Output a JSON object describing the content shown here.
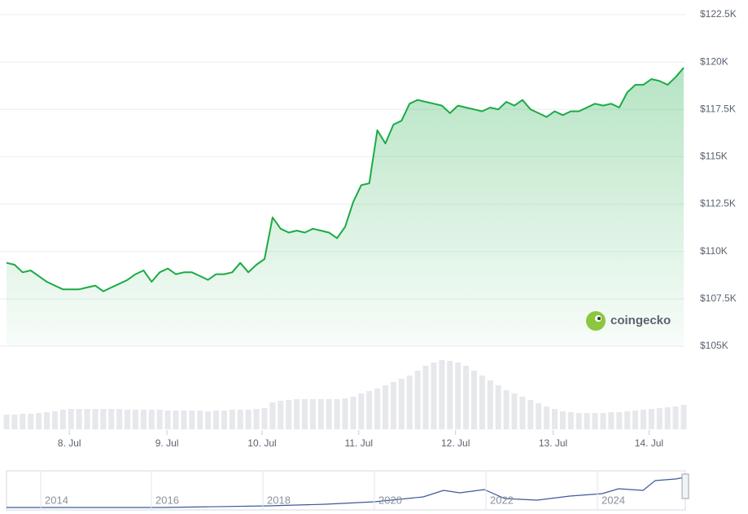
{
  "chart_data": {
    "type": "area",
    "series": [
      {
        "name": "Price",
        "color": "#1aab45",
        "values": [
          109.4,
          109.3,
          108.9,
          109.0,
          108.7,
          108.4,
          108.2,
          108.0,
          108.0,
          108.0,
          108.1,
          108.2,
          107.9,
          108.1,
          108.3,
          108.5,
          108.8,
          109.0,
          108.4,
          108.9,
          109.1,
          108.8,
          108.9,
          108.9,
          108.7,
          108.5,
          108.8,
          108.8,
          108.9,
          109.4,
          108.9,
          109.3,
          109.6,
          111.8,
          111.2,
          111.0,
          111.1,
          111.0,
          111.2,
          111.1,
          111.0,
          110.7,
          111.3,
          112.6,
          113.5,
          113.6,
          116.4,
          115.7,
          116.7,
          116.9,
          117.8,
          118.0,
          117.9,
          117.8,
          117.7,
          117.3,
          117.7,
          117.6,
          117.5,
          117.4,
          117.6,
          117.5,
          117.9,
          117.7,
          118.0,
          117.5,
          117.3,
          117.1,
          117.4,
          117.2,
          117.4,
          117.4,
          117.6,
          117.8,
          117.7,
          117.8,
          117.6,
          118.4,
          118.8,
          118.8,
          119.1,
          119.0,
          118.8,
          119.2,
          119.7
        ]
      }
    ],
    "volume": {
      "color": "#e6e8ec",
      "values": [
        18,
        18,
        19,
        19,
        20,
        21,
        22,
        24,
        25,
        25,
        25,
        25,
        25,
        25,
        25,
        24,
        24,
        24,
        24,
        24,
        23,
        23,
        23,
        23,
        23,
        22,
        23,
        23,
        24,
        24,
        24,
        25,
        26,
        33,
        35,
        36,
        37,
        37,
        37,
        37,
        37,
        37,
        38,
        40,
        44,
        47,
        50,
        54,
        58,
        62,
        66,
        72,
        78,
        82,
        85,
        84,
        82,
        78,
        72,
        66,
        60,
        54,
        48,
        44,
        40,
        36,
        32,
        28,
        25,
        22,
        21,
        20,
        20,
        20,
        20,
        21,
        21,
        22,
        23,
        24,
        25,
        26,
        27,
        28,
        30
      ],
      "ylim": [
        0,
        90
      ]
    },
    "xlim": [
      0,
      84
    ],
    "xticks": [
      {
        "value": 7.8,
        "label": "8. Jul"
      },
      {
        "value": 19.9,
        "label": "9. Jul"
      },
      {
        "value": 31.7,
        "label": "10. Jul"
      },
      {
        "value": 43.7,
        "label": "11. Jul"
      },
      {
        "value": 55.7,
        "label": "12. Jul"
      },
      {
        "value": 67.8,
        "label": "13. Jul"
      },
      {
        "value": 79.7,
        "label": "14. Jul"
      }
    ],
    "ylim": [
      105,
      122.5
    ],
    "yticks": [
      {
        "value": 105,
        "label": "$105K"
      },
      {
        "value": 107.5,
        "label": "$107.5K"
      },
      {
        "value": 110,
        "label": "$110K"
      },
      {
        "value": 112.5,
        "label": "$112.5K"
      },
      {
        "value": 115,
        "label": "$115K"
      },
      {
        "value": 117.5,
        "label": "$117.5K"
      },
      {
        "value": 120,
        "label": "$120K"
      },
      {
        "value": 122.5,
        "label": "$122.5K"
      }
    ],
    "grid": true,
    "watermark": "coingecko",
    "navigator_labels": [
      "2014",
      "2016",
      "2018",
      "2020",
      "2022",
      "2024"
    ]
  }
}
